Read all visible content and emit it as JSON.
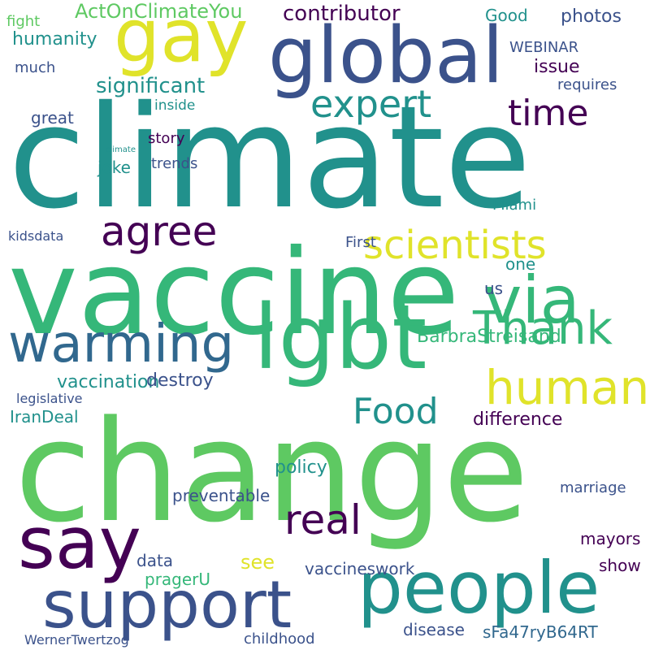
{
  "palette": {
    "purple": "#440154",
    "indigo": "#3b528b",
    "blue": "#31688e",
    "teal": "#21918c",
    "seagreen": "#35b779",
    "green": "#5ec962",
    "lime": "#addc30",
    "yellow": "#e0e32a",
    "background": "#ffffff"
  },
  "words": [
    {
      "text": "climate",
      "color": "teal",
      "weight": 1.0
    },
    {
      "text": "change",
      "color": "green",
      "weight": 0.97
    },
    {
      "text": "vaccine",
      "color": "seagreen",
      "weight": 0.9
    },
    {
      "text": "global",
      "color": "indigo",
      "weight": 0.55
    },
    {
      "text": "gay",
      "color": "yellow",
      "weight": 0.5
    },
    {
      "text": "lgbt",
      "color": "seagreen",
      "weight": 0.6
    },
    {
      "text": "people",
      "color": "teal",
      "weight": 0.5
    },
    {
      "text": "support",
      "color": "indigo",
      "weight": 0.45
    },
    {
      "text": "say",
      "color": "purple",
      "weight": 0.5
    },
    {
      "text": "warming",
      "color": "blue",
      "weight": 0.4
    },
    {
      "text": "via",
      "color": "seagreen",
      "weight": 0.45
    },
    {
      "text": "human",
      "color": "yellow",
      "weight": 0.35
    },
    {
      "text": "scientists",
      "color": "yellow",
      "weight": 0.35
    },
    {
      "text": "agree",
      "color": "purple",
      "weight": 0.3
    },
    {
      "text": "Thank",
      "color": "seagreen",
      "weight": 0.35
    },
    {
      "text": "real",
      "color": "purple",
      "weight": 0.33
    },
    {
      "text": "expert",
      "color": "teal",
      "weight": 0.3
    },
    {
      "text": "time",
      "color": "purple",
      "weight": 0.28
    },
    {
      "text": "Food",
      "color": "teal",
      "weight": 0.3
    },
    {
      "text": "ActOnClimateYou",
      "color": "green",
      "weight": 0.18
    },
    {
      "text": "contributor",
      "color": "purple",
      "weight": 0.18
    },
    {
      "text": "significant",
      "color": "teal",
      "weight": 0.18
    },
    {
      "text": "humanity",
      "color": "teal",
      "weight": 0.15
    },
    {
      "text": "issue",
      "color": "purple",
      "weight": 0.16
    },
    {
      "text": "photos",
      "color": "indigo",
      "weight": 0.14
    },
    {
      "text": "Good",
      "color": "teal",
      "weight": 0.14
    },
    {
      "text": "WEBINAR",
      "color": "indigo",
      "weight": 0.13
    },
    {
      "text": "fight",
      "color": "green",
      "weight": 0.13
    },
    {
      "text": "much",
      "color": "indigo",
      "weight": 0.13
    },
    {
      "text": "requires",
      "color": "indigo",
      "weight": 0.13
    },
    {
      "text": "inside",
      "color": "teal",
      "weight": 0.12
    },
    {
      "text": "great",
      "color": "indigo",
      "weight": 0.14
    },
    {
      "text": "story",
      "color": "purple",
      "weight": 0.13
    },
    {
      "text": "trends",
      "color": "indigo",
      "weight": 0.13
    },
    {
      "text": "joke",
      "color": "teal",
      "weight": 0.14
    },
    {
      "text": "BarbraStreisand",
      "color": "seagreen",
      "weight": 0.16
    },
    {
      "text": "vaccination",
      "color": "teal",
      "weight": 0.15
    },
    {
      "text": "destroy",
      "color": "indigo",
      "weight": 0.15
    },
    {
      "text": "difference",
      "color": "purple",
      "weight": 0.16
    },
    {
      "text": "IranDeal",
      "color": "teal",
      "weight": 0.15
    },
    {
      "text": "legislative",
      "color": "indigo",
      "weight": 0.11
    },
    {
      "text": "policy",
      "color": "teal",
      "weight": 0.16
    },
    {
      "text": "see",
      "color": "yellow",
      "weight": 0.16
    },
    {
      "text": "preventable",
      "color": "indigo",
      "weight": 0.15
    },
    {
      "text": "data",
      "color": "indigo",
      "weight": 0.14
    },
    {
      "text": "pragerU",
      "color": "seagreen",
      "weight": 0.14
    },
    {
      "text": "vaccineswork",
      "color": "indigo",
      "weight": 0.14
    },
    {
      "text": "show",
      "color": "purple",
      "weight": 0.13
    },
    {
      "text": "mayors",
      "color": "purple",
      "weight": 0.14
    },
    {
      "text": "marriage",
      "color": "indigo",
      "weight": 0.12
    },
    {
      "text": "disease",
      "color": "indigo",
      "weight": 0.14
    },
    {
      "text": "childhood",
      "color": "indigo",
      "weight": 0.13
    },
    {
      "text": "sFa47ryB64RT",
      "color": "blue",
      "weight": 0.13
    },
    {
      "text": "WernerTwertzog",
      "color": "indigo",
      "weight": 0.12
    },
    {
      "text": "Miami",
      "color": "teal",
      "weight": 0.12
    },
    {
      "text": "First",
      "color": "indigo",
      "weight": 0.12
    },
    {
      "text": "us",
      "color": "indigo",
      "weight": 0.12
    },
    {
      "text": "one",
      "color": "teal",
      "weight": 0.12
    },
    {
      "text": "kidsdata",
      "color": "indigo",
      "weight": 0.1
    },
    {
      "text": "climate",
      "color": "teal",
      "weight": 0.04
    }
  ]
}
